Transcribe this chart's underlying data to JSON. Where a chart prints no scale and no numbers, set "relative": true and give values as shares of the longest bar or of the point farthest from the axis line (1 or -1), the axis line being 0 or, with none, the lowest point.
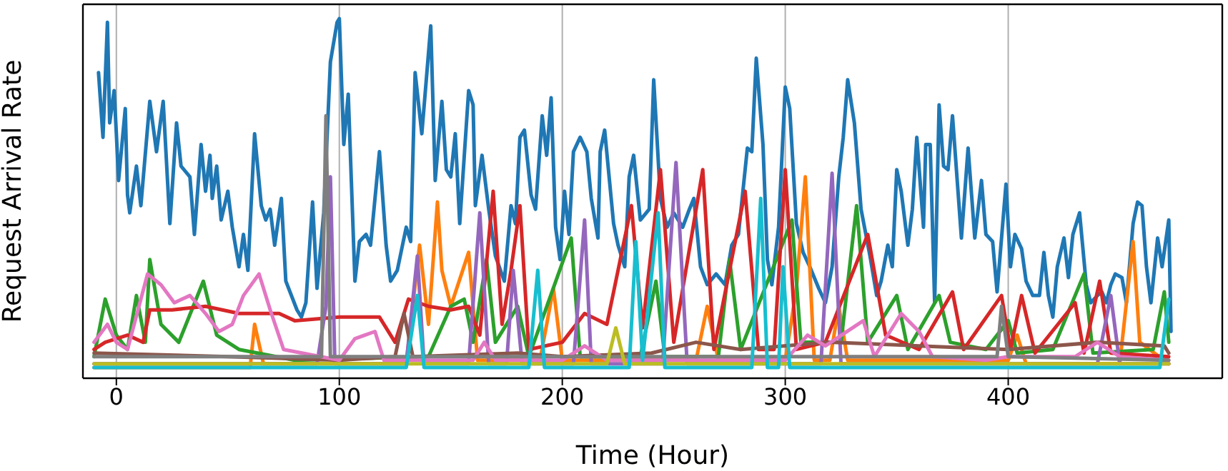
{
  "chart_data": {
    "type": "line",
    "xlabel": "Time (Hour)",
    "ylabel": "Request Arrival Rate",
    "relative": true,
    "xlim": [
      -15,
      496
    ],
    "xticks": [
      0,
      100,
      200,
      300,
      400
    ],
    "grid": "x",
    "series": [
      {
        "color": "#1f77b4",
        "x": [
          -8,
          -6,
          -4,
          -3,
          -1,
          0,
          1,
          4,
          5,
          6,
          9,
          11,
          15,
          18,
          21,
          24,
          27,
          29,
          33,
          35,
          38,
          40,
          42,
          43,
          45,
          47,
          50,
          52,
          55,
          57,
          59,
          62,
          65,
          67,
          69,
          71,
          74,
          76,
          81,
          83,
          85,
          88,
          90,
          93,
          96,
          99,
          100,
          102,
          104,
          107,
          109,
          112,
          114,
          118,
          121,
          123,
          126,
          130,
          132,
          134,
          137,
          141,
          143,
          146,
          148,
          150,
          152,
          154,
          158,
          160,
          161,
          164,
          167,
          170,
          174,
          177,
          179,
          181,
          183,
          186,
          188,
          191,
          193,
          195,
          197,
          199,
          201,
          203,
          205,
          208,
          211,
          213,
          216,
          217,
          219,
          223,
          225,
          228,
          230,
          232,
          235,
          239,
          241,
          244,
          247,
          250,
          254,
          257,
          259,
          262,
          265,
          269,
          273,
          276,
          279,
          283,
          285,
          287,
          290,
          292,
          294,
          297,
          300,
          302,
          305,
          308,
          311,
          315,
          318,
          321,
          324,
          326,
          328,
          331,
          334,
          338,
          341,
          343,
          346,
          348,
          350,
          352,
          355,
          357,
          359,
          362,
          363,
          365,
          367,
          369,
          371,
          373,
          375,
          379,
          382,
          385,
          388,
          390,
          393,
          395,
          399,
          401,
          403,
          406,
          408,
          411,
          414,
          416,
          418,
          420,
          422,
          425,
          427,
          429,
          432,
          435,
          437,
          440,
          442,
          444,
          446,
          448,
          451,
          453,
          456,
          458,
          460,
          462,
          464,
          467,
          469,
          472,
          473
        ],
        "values": [
          0.85,
          0.67,
          0.99,
          0.71,
          0.8,
          0.68,
          0.55,
          0.75,
          0.51,
          0.46,
          0.59,
          0.48,
          0.77,
          0.63,
          0.77,
          0.43,
          0.71,
          0.59,
          0.56,
          0.4,
          0.65,
          0.52,
          0.62,
          0.5,
          0.59,
          0.44,
          0.52,
          0.42,
          0.31,
          0.4,
          0.3,
          0.68,
          0.48,
          0.44,
          0.47,
          0.37,
          0.5,
          0.27,
          0.19,
          0.17,
          0.21,
          0.49,
          0.25,
          0.46,
          0.88,
          0.99,
          1.0,
          0.65,
          0.79,
          0.27,
          0.38,
          0.4,
          0.37,
          0.63,
          0.37,
          0.27,
          0.3,
          0.42,
          0.38,
          0.85,
          0.68,
          0.98,
          0.55,
          0.77,
          0.58,
          0.56,
          0.68,
          0.43,
          0.8,
          0.76,
          0.48,
          0.62,
          0.47,
          0.34,
          0.27,
          0.48,
          0.43,
          0.67,
          0.69,
          0.51,
          0.47,
          0.73,
          0.62,
          0.78,
          0.42,
          0.33,
          0.52,
          0.4,
          0.63,
          0.67,
          0.63,
          0.5,
          0.39,
          0.63,
          0.69,
          0.43,
          0.37,
          0.31,
          0.56,
          0.62,
          0.44,
          0.47,
          0.83,
          0.5,
          0.42,
          0.46,
          0.42,
          0.47,
          0.5,
          0.31,
          0.26,
          0.29,
          0.26,
          0.37,
          0.4,
          0.64,
          0.63,
          0.89,
          0.65,
          0.33,
          0.26,
          0.42,
          0.81,
          0.75,
          0.43,
          0.35,
          0.31,
          0.25,
          0.21,
          0.31,
          0.56,
          0.67,
          0.83,
          0.71,
          0.47,
          0.34,
          0.23,
          0.27,
          0.37,
          0.31,
          0.58,
          0.52,
          0.37,
          0.47,
          0.67,
          0.42,
          0.65,
          0.65,
          0.21,
          0.76,
          0.59,
          0.58,
          0.73,
          0.39,
          0.64,
          0.39,
          0.55,
          0.4,
          0.38,
          0.24,
          0.54,
          0.31,
          0.4,
          0.36,
          0.27,
          0.23,
          0.23,
          0.35,
          0.23,
          0.17,
          0.31,
          0.39,
          0.28,
          0.4,
          0.46,
          0.26,
          0.21,
          0.23,
          0.24,
          0.21,
          0.26,
          0.29,
          0.28,
          0.21,
          0.43,
          0.49,
          0.48,
          0.31,
          0.21,
          0.39,
          0.31,
          0.44,
          0.13
        ]
      },
      {
        "color": "#ff7f0e",
        "x": [
          -10,
          60,
          62,
          66,
          130,
          136,
          140,
          144,
          146,
          150,
          158,
          162,
          190,
          196,
          200,
          260,
          265,
          270,
          300,
          305,
          309,
          313,
          320,
          324,
          328,
          400,
          404,
          408,
          450,
          456,
          459,
          472
        ],
        "values": [
          0.03,
          0.03,
          0.15,
          0.04,
          0.04,
          0.37,
          0.15,
          0.49,
          0.3,
          0.2,
          0.35,
          0.05,
          0.05,
          0.25,
          0.05,
          0.05,
          0.2,
          0.05,
          0.05,
          0.25,
          0.56,
          0.05,
          0.05,
          0.2,
          0.05,
          0.05,
          0.12,
          0.04,
          0.04,
          0.38,
          0.1,
          0.04
        ]
      },
      {
        "color": "#2ca02c",
        "x": [
          -10,
          -5,
          0,
          5,
          9,
          13,
          15,
          20,
          28,
          39,
          45,
          55,
          80,
          140,
          150,
          156,
          160,
          166,
          170,
          180,
          185,
          204,
          208,
          235,
          242,
          246,
          270,
          275,
          280,
          303,
          307,
          325,
          332,
          337,
          350,
          355,
          369,
          374,
          390,
          400,
          404,
          420,
          434,
          438,
          465,
          470,
          472
        ],
        "values": [
          0.06,
          0.22,
          0.12,
          0.08,
          0.23,
          0.1,
          0.33,
          0.15,
          0.1,
          0.27,
          0.12,
          0.08,
          0.05,
          0.06,
          0.2,
          0.22,
          0.1,
          0.33,
          0.1,
          0.2,
          0.06,
          0.39,
          0.06,
          0.06,
          0.27,
          0.06,
          0.06,
          0.33,
          0.08,
          0.44,
          0.1,
          0.1,
          0.48,
          0.1,
          0.23,
          0.08,
          0.23,
          0.1,
          0.08,
          0.16,
          0.07,
          0.08,
          0.29,
          0.07,
          0.08,
          0.24,
          0.1
        ]
      },
      {
        "color": "#d62728",
        "x": [
          -10,
          -5,
          5,
          12,
          15,
          25,
          40,
          55,
          73,
          80,
          100,
          118,
          125,
          131,
          140,
          150,
          158,
          163,
          169,
          173,
          177,
          181,
          185,
          200,
          210,
          220,
          231,
          236,
          244,
          250,
          263,
          268,
          282,
          288,
          295,
          300,
          305,
          318,
          337,
          345,
          360,
          375,
          380,
          397,
          401,
          406,
          412,
          430,
          434,
          441,
          446,
          472
        ],
        "values": [
          0.08,
          0.1,
          0.12,
          0.1,
          0.19,
          0.19,
          0.2,
          0.18,
          0.18,
          0.16,
          0.17,
          0.17,
          0.1,
          0.22,
          0.2,
          0.19,
          0.2,
          0.12,
          0.52,
          0.15,
          0.3,
          0.48,
          0.08,
          0.1,
          0.18,
          0.15,
          0.48,
          0.14,
          0.58,
          0.1,
          0.58,
          0.08,
          0.52,
          0.08,
          0.08,
          0.58,
          0.08,
          0.1,
          0.4,
          0.12,
          0.08,
          0.24,
          0.08,
          0.23,
          0.08,
          0.23,
          0.07,
          0.21,
          0.07,
          0.27,
          0.07,
          0.06
        ]
      },
      {
        "color": "#9467bd",
        "x": [
          -10,
          90,
          94,
          96,
          98,
          130,
          135,
          138,
          158,
          163,
          167,
          175,
          178,
          182,
          205,
          210,
          213,
          245,
          251,
          256,
          316,
          321,
          325,
          440,
          446,
          450,
          472
        ],
        "values": [
          0.04,
          0.04,
          0.2,
          0.56,
          0.04,
          0.04,
          0.34,
          0.04,
          0.04,
          0.46,
          0.04,
          0.04,
          0.3,
          0.04,
          0.04,
          0.44,
          0.04,
          0.04,
          0.6,
          0.04,
          0.04,
          0.57,
          0.04,
          0.04,
          0.23,
          0.04,
          0.04
        ]
      },
      {
        "color": "#8c564b",
        "x": [
          -10,
          50,
          100,
          125,
          129,
          133,
          180,
          200,
          240,
          260,
          280,
          320,
          360,
          400,
          440,
          470,
          472
        ],
        "values": [
          0.07,
          0.06,
          0.05,
          0.06,
          0.18,
          0.06,
          0.07,
          0.06,
          0.07,
          0.1,
          0.08,
          0.1,
          0.09,
          0.08,
          0.1,
          0.09,
          0.07
        ]
      },
      {
        "color": "#e377c2",
        "x": [
          -10,
          -4,
          0,
          5,
          14,
          20,
          26,
          33,
          40,
          46,
          52,
          57,
          64,
          69,
          75,
          100,
          107,
          116,
          120,
          160,
          165,
          170,
          200,
          210,
          220,
          300,
          310,
          318,
          335,
          340,
          352,
          360,
          366,
          390,
          400,
          430,
          440,
          450,
          472
        ],
        "values": [
          0.1,
          0.15,
          0.1,
          0.08,
          0.29,
          0.26,
          0.21,
          0.23,
          0.18,
          0.13,
          0.15,
          0.23,
          0.29,
          0.19,
          0.08,
          0.05,
          0.11,
          0.13,
          0.05,
          0.05,
          0.1,
          0.05,
          0.05,
          0.09,
          0.05,
          0.05,
          0.12,
          0.09,
          0.16,
          0.06,
          0.18,
          0.13,
          0.06,
          0.05,
          0.06,
          0.06,
          0.1,
          0.06,
          0.05
        ]
      },
      {
        "color": "#7f7f7f",
        "x": [
          -10,
          92,
          94,
          96,
          395,
          397,
          400,
          472
        ],
        "values": [
          0.06,
          0.06,
          0.73,
          0.06,
          0.06,
          0.2,
          0.06,
          0.05
        ]
      },
      {
        "color": "#bcbd22",
        "x": [
          -10,
          220,
          224,
          228,
          472
        ],
        "values": [
          0.04,
          0.04,
          0.14,
          0.04,
          0.04
        ]
      },
      {
        "color": "#17becf",
        "x": [
          -10,
          130,
          135,
          138,
          185,
          189,
          192,
          230,
          233,
          236,
          243,
          246,
          285,
          289,
          292,
          297,
          299,
          302,
          468,
          472
        ],
        "values": [
          0.03,
          0.03,
          0.23,
          0.03,
          0.03,
          0.3,
          0.03,
          0.03,
          0.38,
          0.05,
          0.46,
          0.03,
          0.03,
          0.5,
          0.03,
          0.03,
          0.31,
          0.03,
          0.03,
          0.22
        ]
      }
    ]
  }
}
